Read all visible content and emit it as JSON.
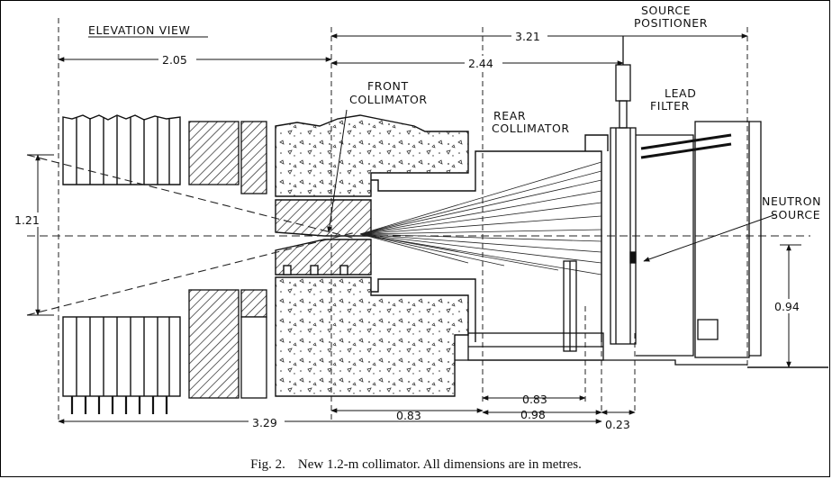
{
  "labels": {
    "elevation_view": "ELEVATION VIEW",
    "source_positioner": [
      "SOURCE",
      "POSITIONER"
    ],
    "front_collimator": [
      "FRONT",
      "COLLIMATOR"
    ],
    "lead_filter": [
      "LEAD",
      "FILTER"
    ],
    "rear_collimator": [
      "REAR",
      "COLLIMATOR"
    ],
    "neutron_source": [
      "NEUTRON",
      "SOURCE"
    ]
  },
  "dimensions": {
    "d_2_05": "2.05",
    "d_3_21": "3.21",
    "d_2_44": "2.44",
    "d_1_21": "1.21",
    "d_0_94": "0.94",
    "d_3_29": "3.29",
    "d_0_83_left": "0.83",
    "d_0_83_right": "0.83",
    "d_0_98": "0.98",
    "d_0_23": "0.23"
  },
  "caption": {
    "fig_number": "Fig. 2.",
    "text": "New 1.2-m collimator. All dimensions are in metres."
  }
}
